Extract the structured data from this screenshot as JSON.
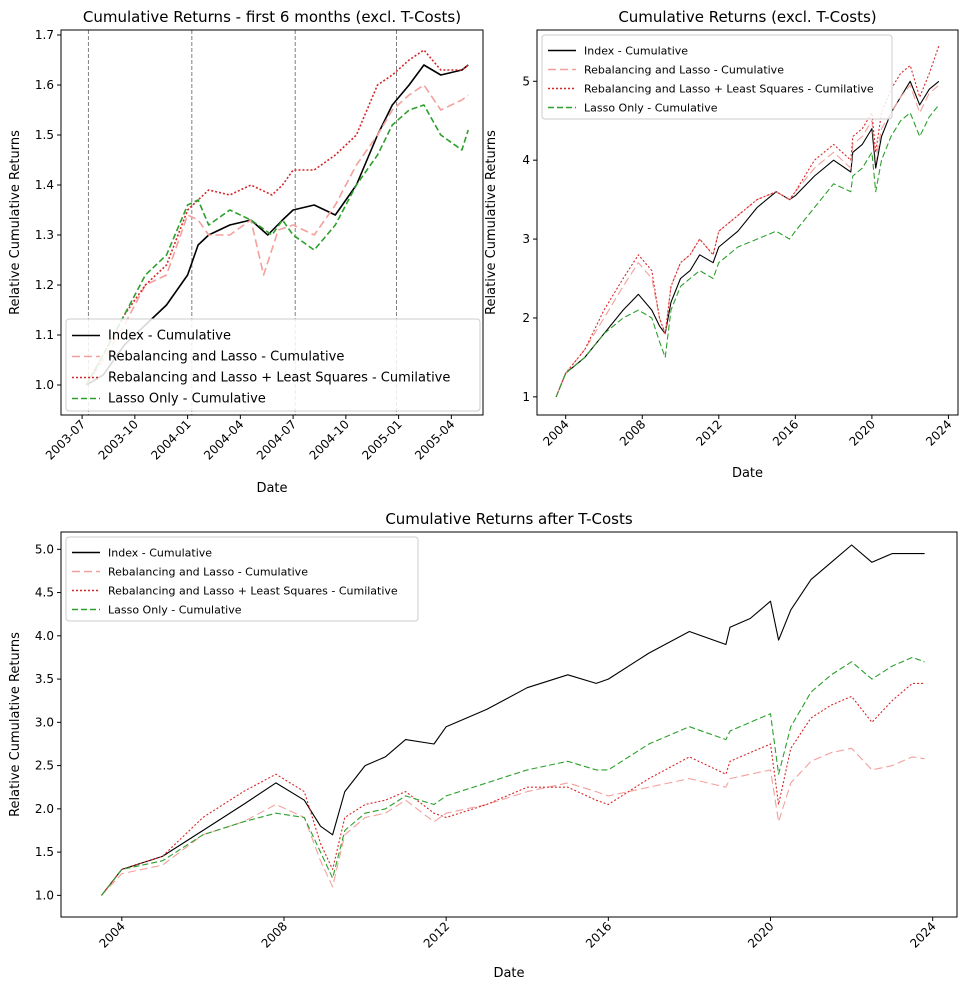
{
  "chart_data": [
    {
      "type": "line",
      "title": "Cumulative Returns - first 6 months (excl. T-Costs)",
      "xlabel": "Date",
      "ylabel": "Relative Cumulative Returns",
      "xlim": [
        2003.4,
        2005.4
      ],
      "ylim": [
        0.94,
        1.71
      ],
      "xticks": [
        {
          "v": 2003.5,
          "label": "2003-07"
        },
        {
          "v": 2003.75,
          "label": "2003-10"
        },
        {
          "v": 2004.0,
          "label": "2004-01"
        },
        {
          "v": 2004.25,
          "label": "2004-04"
        },
        {
          "v": 2004.5,
          "label": "2004-07"
        },
        {
          "v": 2004.75,
          "label": "2004-10"
        },
        {
          "v": 2005.0,
          "label": "2005-01"
        },
        {
          "v": 2005.25,
          "label": "2005-04"
        }
      ],
      "yticks": [
        {
          "v": 1.0,
          "label": "1.0"
        },
        {
          "v": 1.1,
          "label": "1.1"
        },
        {
          "v": 1.2,
          "label": "1.2"
        },
        {
          "v": 1.3,
          "label": "1.3"
        },
        {
          "v": 1.4,
          "label": "1.4"
        },
        {
          "v": 1.5,
          "label": "1.5"
        },
        {
          "v": 1.6,
          "label": "1.6"
        },
        {
          "v": 1.7,
          "label": "1.7"
        }
      ],
      "rebalance_lines": [
        2003.53,
        2004.02,
        2004.51,
        2004.99
      ],
      "legend_position": "lower-left",
      "series": [
        {
          "name": "Index - Cumulative",
          "color": "#000000",
          "dash": "",
          "x": [
            2003.52,
            2003.6,
            2003.7,
            2003.8,
            2003.9,
            2004.0,
            2004.05,
            2004.1,
            2004.2,
            2004.3,
            2004.38,
            2004.45,
            2004.5,
            2004.6,
            2004.7,
            2004.8,
            2004.9,
            2004.97,
            2005.05,
            2005.12,
            2005.2,
            2005.3,
            2005.33
          ],
          "y": [
            1.0,
            1.02,
            1.08,
            1.12,
            1.16,
            1.22,
            1.28,
            1.3,
            1.32,
            1.33,
            1.3,
            1.33,
            1.35,
            1.36,
            1.34,
            1.4,
            1.5,
            1.56,
            1.6,
            1.64,
            1.62,
            1.63,
            1.64
          ]
        },
        {
          "name": "Rebalancing and Lasso - Cumulative",
          "color": "#f4a09c",
          "dash": "8 4",
          "x": [
            2003.52,
            2003.6,
            2003.7,
            2003.8,
            2003.9,
            2004.0,
            2004.05,
            2004.1,
            2004.2,
            2004.3,
            2004.36,
            2004.43,
            2004.5,
            2004.6,
            2004.7,
            2004.8,
            2004.9,
            2004.97,
            2005.05,
            2005.12,
            2005.2,
            2005.3,
            2005.33
          ],
          "y": [
            1.0,
            1.05,
            1.12,
            1.2,
            1.22,
            1.34,
            1.33,
            1.3,
            1.3,
            1.33,
            1.22,
            1.31,
            1.32,
            1.3,
            1.36,
            1.44,
            1.5,
            1.55,
            1.58,
            1.6,
            1.55,
            1.57,
            1.58
          ]
        },
        {
          "name": "Rebalancing and Lasso + Least Squares - Cumilative",
          "color": "#d62728",
          "dash": "2 2",
          "x": [
            2003.52,
            2003.6,
            2003.7,
            2003.8,
            2003.9,
            2004.0,
            2004.05,
            2004.1,
            2004.2,
            2004.3,
            2004.4,
            2004.45,
            2004.5,
            2004.6,
            2004.7,
            2004.8,
            2004.9,
            2004.97,
            2005.05,
            2005.12,
            2005.2,
            2005.3,
            2005.33
          ],
          "y": [
            1.0,
            1.06,
            1.14,
            1.2,
            1.24,
            1.35,
            1.37,
            1.39,
            1.38,
            1.4,
            1.38,
            1.4,
            1.43,
            1.43,
            1.46,
            1.5,
            1.6,
            1.62,
            1.65,
            1.67,
            1.63,
            1.63,
            1.64
          ]
        },
        {
          "name": "Lasso Only - Cumulative",
          "color": "#2ca02c",
          "dash": "6 3",
          "x": [
            2003.52,
            2003.6,
            2003.7,
            2003.8,
            2003.9,
            2004.0,
            2004.05,
            2004.1,
            2004.2,
            2004.3,
            2004.4,
            2004.45,
            2004.5,
            2004.6,
            2004.7,
            2004.8,
            2004.9,
            2004.97,
            2005.05,
            2005.12,
            2005.2,
            2005.3,
            2005.33
          ],
          "y": [
            1.0,
            1.06,
            1.14,
            1.22,
            1.26,
            1.36,
            1.37,
            1.32,
            1.35,
            1.33,
            1.3,
            1.33,
            1.3,
            1.27,
            1.32,
            1.4,
            1.46,
            1.52,
            1.55,
            1.56,
            1.5,
            1.47,
            1.51
          ]
        }
      ]
    },
    {
      "type": "line",
      "title": "Cumulative Returns (excl. T-Costs)",
      "xlabel": "Date",
      "ylabel": "Relative Cumulative Returns",
      "xlim": [
        2002.5,
        2024.5
      ],
      "ylim": [
        0.77,
        5.65
      ],
      "xticks": [
        {
          "v": 2004,
          "label": "2004"
        },
        {
          "v": 2008,
          "label": "2008"
        },
        {
          "v": 2012,
          "label": "2012"
        },
        {
          "v": 2016,
          "label": "2016"
        },
        {
          "v": 2020,
          "label": "2020"
        },
        {
          "v": 2024,
          "label": "2024"
        }
      ],
      "yticks": [
        {
          "v": 1,
          "label": "1"
        },
        {
          "v": 2,
          "label": "2"
        },
        {
          "v": 3,
          "label": "3"
        },
        {
          "v": 4,
          "label": "4"
        },
        {
          "v": 5,
          "label": "5"
        }
      ],
      "legend_position": "upper-left",
      "series": [
        {
          "name": "Index - Cumulative",
          "color": "#000000",
          "dash": "",
          "x": [
            2003.5,
            2004,
            2005,
            2006,
            2007,
            2007.8,
            2008.5,
            2008.9,
            2009.2,
            2009.5,
            2010,
            2010.5,
            2011,
            2011.7,
            2012,
            2013,
            2014,
            2015,
            2015.7,
            2016,
            2017,
            2018,
            2018.9,
            2019,
            2019.5,
            2020,
            2020.2,
            2020.5,
            2021,
            2021.5,
            2022,
            2022.5,
            2023,
            2023.5
          ],
          "y": [
            1.0,
            1.3,
            1.5,
            1.8,
            2.1,
            2.3,
            2.1,
            1.9,
            1.8,
            2.2,
            2.5,
            2.6,
            2.8,
            2.7,
            2.9,
            3.1,
            3.4,
            3.6,
            3.5,
            3.55,
            3.8,
            4.0,
            3.85,
            4.1,
            4.2,
            4.4,
            3.9,
            4.3,
            4.6,
            4.8,
            5.0,
            4.7,
            4.9,
            5.0
          ]
        },
        {
          "name": "Rebalancing and Lasso - Cumulative",
          "color": "#f4a09c",
          "dash": "8 4",
          "x": [
            2003.5,
            2004,
            2005,
            2006,
            2007,
            2007.8,
            2008.5,
            2008.9,
            2009.2,
            2009.5,
            2010,
            2010.5,
            2011,
            2011.7,
            2012,
            2013,
            2014,
            2015,
            2015.7,
            2016,
            2017,
            2018,
            2018.9,
            2019,
            2019.5,
            2020,
            2020.2,
            2020.5,
            2021,
            2021.5,
            2022,
            2022.5,
            2023,
            2023.5
          ],
          "y": [
            1.0,
            1.3,
            1.6,
            2.0,
            2.4,
            2.7,
            2.5,
            2.0,
            1.8,
            2.4,
            2.7,
            2.8,
            3.0,
            2.8,
            3.1,
            3.3,
            3.5,
            3.6,
            3.5,
            3.6,
            3.9,
            4.1,
            3.9,
            4.2,
            4.3,
            4.5,
            4.0,
            4.4,
            4.6,
            4.8,
            4.95,
            4.6,
            4.85,
            4.95
          ]
        },
        {
          "name": "Rebalancing and Lasso + Least Squares - Cumilative",
          "color": "#d62728",
          "dash": "2 2",
          "x": [
            2003.5,
            2004,
            2005,
            2006,
            2007,
            2007.8,
            2008.5,
            2008.9,
            2009.2,
            2009.5,
            2010,
            2010.5,
            2011,
            2011.7,
            2012,
            2013,
            2014,
            2015,
            2015.7,
            2016,
            2017,
            2018,
            2018.9,
            2019,
            2019.5,
            2020,
            2020.2,
            2020.5,
            2021,
            2021.5,
            2022,
            2022.5,
            2023,
            2023.5
          ],
          "y": [
            1.0,
            1.3,
            1.6,
            2.1,
            2.5,
            2.8,
            2.6,
            2.0,
            1.8,
            2.4,
            2.7,
            2.8,
            3.0,
            2.8,
            3.1,
            3.3,
            3.5,
            3.6,
            3.5,
            3.6,
            4.0,
            4.2,
            4.0,
            4.3,
            4.4,
            4.6,
            4.1,
            4.6,
            4.9,
            5.1,
            5.2,
            4.8,
            5.1,
            5.45
          ]
        },
        {
          "name": "Lasso Only - Cumulative",
          "color": "#2ca02c",
          "dash": "6 3",
          "x": [
            2003.5,
            2004,
            2005,
            2006,
            2007,
            2007.8,
            2008.5,
            2008.9,
            2009.2,
            2009.5,
            2010,
            2010.5,
            2011,
            2011.7,
            2012,
            2013,
            2014,
            2015,
            2015.7,
            2016,
            2017,
            2018,
            2018.9,
            2019,
            2019.5,
            2020,
            2020.2,
            2020.5,
            2021,
            2021.5,
            2022,
            2022.5,
            2023,
            2023.5
          ],
          "y": [
            1.0,
            1.3,
            1.5,
            1.8,
            2.0,
            2.1,
            2.0,
            1.7,
            1.5,
            2.1,
            2.4,
            2.5,
            2.6,
            2.5,
            2.7,
            2.9,
            3.0,
            3.1,
            3.0,
            3.1,
            3.4,
            3.7,
            3.6,
            3.8,
            3.9,
            4.1,
            3.6,
            4.0,
            4.3,
            4.5,
            4.6,
            4.3,
            4.55,
            4.7
          ]
        }
      ]
    },
    {
      "type": "line",
      "title": "Cumulative Returns after T-Costs",
      "xlabel": "Date",
      "ylabel": "Relative Cumulative Returns",
      "xlim": [
        2002.5,
        2024.6
      ],
      "ylim": [
        0.75,
        5.2
      ],
      "xticks": [
        {
          "v": 2004,
          "label": "2004"
        },
        {
          "v": 2008,
          "label": "2008"
        },
        {
          "v": 2012,
          "label": "2012"
        },
        {
          "v": 2016,
          "label": "2016"
        },
        {
          "v": 2020,
          "label": "2020"
        },
        {
          "v": 2024,
          "label": "2024"
        }
      ],
      "yticks": [
        {
          "v": 1.0,
          "label": "1.0"
        },
        {
          "v": 1.5,
          "label": "1.5"
        },
        {
          "v": 2.0,
          "label": "2.0"
        },
        {
          "v": 2.5,
          "label": "2.5"
        },
        {
          "v": 3.0,
          "label": "3.0"
        },
        {
          "v": 3.5,
          "label": "3.5"
        },
        {
          "v": 4.0,
          "label": "4.0"
        },
        {
          "v": 4.5,
          "label": "4.5"
        },
        {
          "v": 5.0,
          "label": "5.0"
        }
      ],
      "legend_position": "upper-left",
      "series": [
        {
          "name": "Index - Cumulative",
          "color": "#000000",
          "dash": "",
          "x": [
            2003.5,
            2004,
            2005,
            2006,
            2007,
            2007.8,
            2008.5,
            2008.9,
            2009.2,
            2009.5,
            2010,
            2010.5,
            2011,
            2011.7,
            2012,
            2013,
            2014,
            2015,
            2015.7,
            2016,
            2017,
            2018,
            2018.9,
            2019,
            2019.5,
            2020,
            2020.2,
            2020.5,
            2021,
            2021.5,
            2022,
            2022.5,
            2023,
            2023.5,
            2023.8
          ],
          "y": [
            1.0,
            1.3,
            1.45,
            1.75,
            2.05,
            2.3,
            2.1,
            1.8,
            1.7,
            2.2,
            2.5,
            2.6,
            2.8,
            2.75,
            2.95,
            3.15,
            3.4,
            3.55,
            3.45,
            3.5,
            3.8,
            4.05,
            3.9,
            4.1,
            4.2,
            4.4,
            3.95,
            4.3,
            4.65,
            4.85,
            5.05,
            4.85,
            4.95,
            4.95,
            4.95
          ]
        },
        {
          "name": "Rebalancing and Lasso - Cumulative",
          "color": "#f4a09c",
          "dash": "8 4",
          "x": [
            2003.5,
            2004,
            2005,
            2006,
            2007,
            2007.8,
            2008.5,
            2008.9,
            2009.2,
            2009.5,
            2010,
            2010.5,
            2011,
            2011.7,
            2012,
            2013,
            2014,
            2015,
            2015.7,
            2016,
            2017,
            2018,
            2018.9,
            2019,
            2019.5,
            2020,
            2020.2,
            2020.5,
            2021,
            2021.5,
            2022,
            2022.5,
            2023,
            2023.5,
            2023.8
          ],
          "y": [
            1.0,
            1.25,
            1.35,
            1.7,
            1.85,
            2.05,
            1.9,
            1.4,
            1.1,
            1.7,
            1.9,
            1.95,
            2.1,
            1.85,
            1.95,
            2.05,
            2.2,
            2.3,
            2.2,
            2.15,
            2.25,
            2.35,
            2.25,
            2.35,
            2.4,
            2.45,
            1.85,
            2.3,
            2.55,
            2.65,
            2.7,
            2.45,
            2.5,
            2.6,
            2.58
          ]
        },
        {
          "name": "Rebalancing and Lasso + Least Squares - Cumilative",
          "color": "#d62728",
          "dash": "2 2",
          "x": [
            2003.5,
            2004,
            2005,
            2006,
            2007,
            2007.8,
            2008.5,
            2008.9,
            2009.2,
            2009.5,
            2010,
            2010.5,
            2011,
            2011.7,
            2012,
            2013,
            2014,
            2015,
            2015.7,
            2016,
            2017,
            2018,
            2018.9,
            2019,
            2019.5,
            2020,
            2020.2,
            2020.5,
            2021,
            2021.5,
            2022,
            2022.5,
            2023,
            2023.5,
            2023.8
          ],
          "y": [
            1.0,
            1.3,
            1.45,
            1.9,
            2.2,
            2.4,
            2.2,
            1.6,
            1.3,
            1.9,
            2.05,
            2.1,
            2.2,
            1.95,
            1.9,
            2.05,
            2.25,
            2.25,
            2.1,
            2.05,
            2.35,
            2.6,
            2.4,
            2.55,
            2.65,
            2.75,
            2.05,
            2.7,
            3.05,
            3.2,
            3.3,
            3.0,
            3.25,
            3.45,
            3.45
          ]
        },
        {
          "name": "Lasso Only - Cumulative",
          "color": "#2ca02c",
          "dash": "6 3",
          "x": [
            2003.5,
            2004,
            2005,
            2006,
            2007,
            2007.8,
            2008.5,
            2008.9,
            2009.2,
            2009.5,
            2010,
            2010.5,
            2011,
            2011.7,
            2012,
            2013,
            2014,
            2015,
            2015.7,
            2016,
            2017,
            2018,
            2018.9,
            2019,
            2019.5,
            2020,
            2020.2,
            2020.5,
            2021,
            2021.5,
            2022,
            2022.5,
            2023,
            2023.5,
            2023.8
          ],
          "y": [
            1.0,
            1.3,
            1.4,
            1.7,
            1.85,
            1.95,
            1.9,
            1.5,
            1.2,
            1.75,
            1.95,
            2.0,
            2.15,
            2.05,
            2.15,
            2.3,
            2.45,
            2.55,
            2.45,
            2.45,
            2.75,
            2.95,
            2.8,
            2.9,
            3.0,
            3.1,
            2.4,
            2.95,
            3.35,
            3.55,
            3.7,
            3.5,
            3.65,
            3.75,
            3.7
          ]
        }
      ]
    }
  ]
}
